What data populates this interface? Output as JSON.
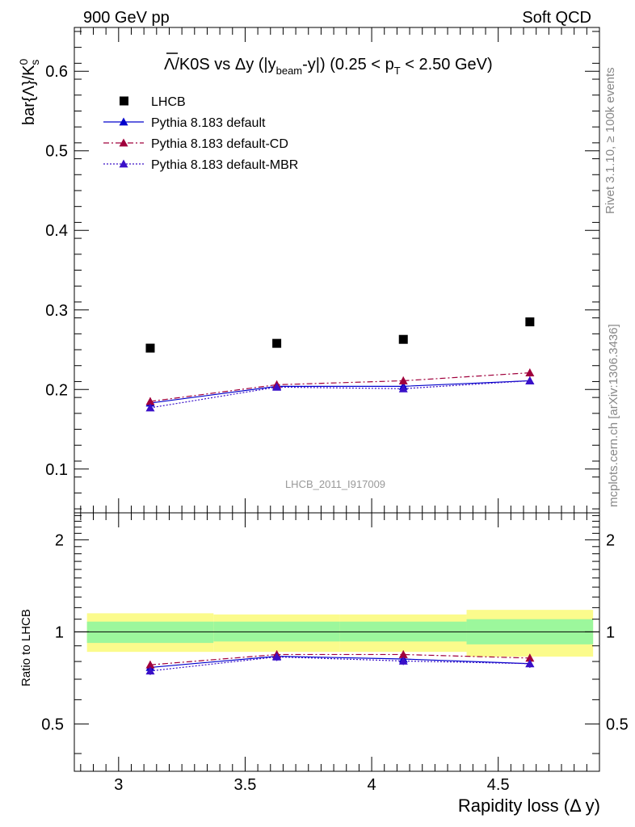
{
  "header": {
    "left": "900 GeV pp",
    "right": "Soft QCD"
  },
  "side_labels": {
    "top": "Rivet 3.1.10, ≥ 100k events",
    "bottom": "mcplots.cern.ch [arXiv:1306.3436]"
  },
  "colors": {
    "data": "#000000",
    "default": "#0000cc",
    "cd": "#a0003c",
    "mbr": "#3a10c8",
    "band_outer": "#fbfb8c",
    "band_inner": "#9cf79c"
  },
  "chart_data": [
    {
      "panel": "main",
      "type": "scatter",
      "title": "Λ̄/K0S vs Δy (|y_beam - y|) (0.25 < p_T < 2.50 GeV)",
      "title_parts": {
        "lambda": "Λ",
        "after_lambda": "/K0S vs Δy (|y",
        "beam_sub": "beam",
        "after_beam": "-y|) (0.25 < p",
        "t_sub": "T",
        "after_t": " < 2.50 GeV)"
      },
      "ylabel": "bar{Λ}/K",
      "ylabel_sup": "0",
      "ylabel_sub": "s",
      "watermark": "LHCB_2011_I917009",
      "xlim": [
        2.825,
        4.9
      ],
      "ylim": [
        0.045,
        0.655
      ],
      "yticks": [
        0.1,
        0.2,
        0.3,
        0.4,
        0.5,
        0.6
      ],
      "ytick_labels": [
        "0.1",
        "0.2",
        "0.3",
        "0.4",
        "0.5",
        "0.6"
      ],
      "x": [
        3.125,
        3.625,
        4.125,
        4.625
      ],
      "series": [
        {
          "name": "LHCB",
          "key": "data",
          "marker": "square",
          "values": [
            0.252,
            0.258,
            0.263,
            0.285
          ]
        },
        {
          "name": "Pythia 8.183 default",
          "key": "default",
          "marker": "triangle",
          "line": "solid",
          "values": [
            0.183,
            0.204,
            0.204,
            0.211
          ],
          "err": [
            0.004,
            0.004,
            0.004,
            0.004
          ]
        },
        {
          "name": "Pythia 8.183 default-CD",
          "key": "cd",
          "marker": "triangle",
          "line": "dashdot",
          "values": [
            0.185,
            0.206,
            0.211,
            0.221
          ],
          "err": [
            0.005,
            0.005,
            0.005,
            0.005
          ]
        },
        {
          "name": "Pythia 8.183 default-MBR",
          "key": "mbr",
          "marker": "triangle",
          "line": "dotted",
          "values": [
            0.177,
            0.203,
            0.201,
            0.211
          ],
          "err": [
            0.004,
            0.004,
            0.004,
            0.004
          ]
        }
      ]
    },
    {
      "panel": "ratio",
      "type": "line",
      "ylabel": "Ratio to LHCB",
      "xlabel": "Rapidity loss (Δ y)",
      "xlim": [
        2.825,
        4.9
      ],
      "ylim": [
        0.35,
        2.45
      ],
      "yticks": [
        0.5,
        1,
        2
      ],
      "ytick_labels": [
        "0.5",
        "1",
        "2"
      ],
      "xticks": [
        3,
        3.5,
        4,
        4.5
      ],
      "xtick_labels": [
        "3",
        "3.5",
        "4",
        "4.5"
      ],
      "x": [
        3.125,
        3.625,
        4.125,
        4.625
      ],
      "band_bins": [
        [
          2.875,
          3.375
        ],
        [
          3.375,
          3.875
        ],
        [
          3.875,
          4.375
        ],
        [
          4.375,
          4.875
        ]
      ],
      "band_outer": [
        [
          0.86,
          1.15
        ],
        [
          0.86,
          1.14
        ],
        [
          0.86,
          1.14
        ],
        [
          0.83,
          1.18
        ]
      ],
      "band_inner": [
        [
          0.92,
          1.08
        ],
        [
          0.93,
          1.08
        ],
        [
          0.93,
          1.08
        ],
        [
          0.91,
          1.1
        ]
      ],
      "series": [
        {
          "name": "Pythia 8.183 default",
          "key": "default",
          "line": "solid",
          "values": [
            0.765,
            0.832,
            0.815,
            0.787
          ]
        },
        {
          "name": "Pythia 8.183 default-CD",
          "key": "cd",
          "line": "dashdot",
          "values": [
            0.78,
            0.843,
            0.843,
            0.821
          ]
        },
        {
          "name": "Pythia 8.183 default-MBR",
          "key": "mbr",
          "line": "dotted",
          "values": [
            0.745,
            0.828,
            0.803,
            0.787
          ]
        }
      ]
    }
  ]
}
